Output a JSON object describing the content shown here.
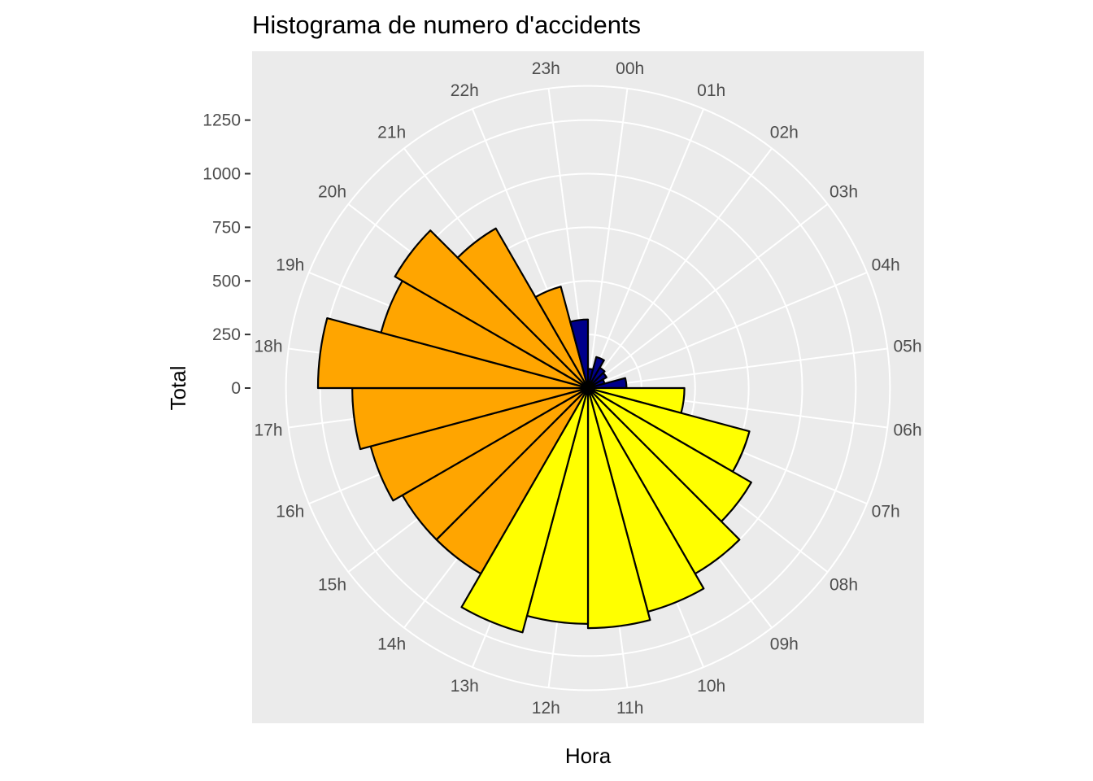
{
  "chart_data": {
    "type": "bar",
    "coord": "polar",
    "title": "Histograma de numero d'accidents",
    "xlabel": "Hora",
    "ylabel": "Total",
    "categories": [
      "00h",
      "01h",
      "02h",
      "03h",
      "04h",
      "05h",
      "06h",
      "07h",
      "08h",
      "09h",
      "10h",
      "11h",
      "12h",
      "13h",
      "14h",
      "15h",
      "16h",
      "17h",
      "18h",
      "19h",
      "20h",
      "21h",
      "22h",
      "23h"
    ],
    "values": [
      90,
      150,
      110,
      100,
      80,
      180,
      450,
      780,
      880,
      1000,
      1080,
      1120,
      1100,
      1180,
      1000,
      1000,
      1050,
      1100,
      1260,
      1000,
      1040,
      860,
      490,
      320
    ],
    "colors": [
      "#00008b",
      "#00008b",
      "#00008b",
      "#00008b",
      "#00008b",
      "#00008b",
      "#ffff00",
      "#ffff00",
      "#ffff00",
      "#ffff00",
      "#ffff00",
      "#ffff00",
      "#ffff00",
      "#ffff00",
      "#ffa500",
      "#ffa500",
      "#ffa500",
      "#ffa500",
      "#ffa500",
      "#ffa500",
      "#ffa500",
      "#ffa500",
      "#ffa500",
      "#00008b"
    ],
    "y_ticks": [
      0,
      250,
      500,
      750,
      1000,
      1250
    ],
    "y_tick_labels": [
      "0",
      "250",
      "500",
      "750",
      "1000",
      "1250"
    ],
    "ylim": [
      0,
      1400
    ],
    "grid": true,
    "legend": "none",
    "panel_background": "#ebebeb",
    "grid_color": "#ffffff",
    "bar_outline": "#000000"
  }
}
